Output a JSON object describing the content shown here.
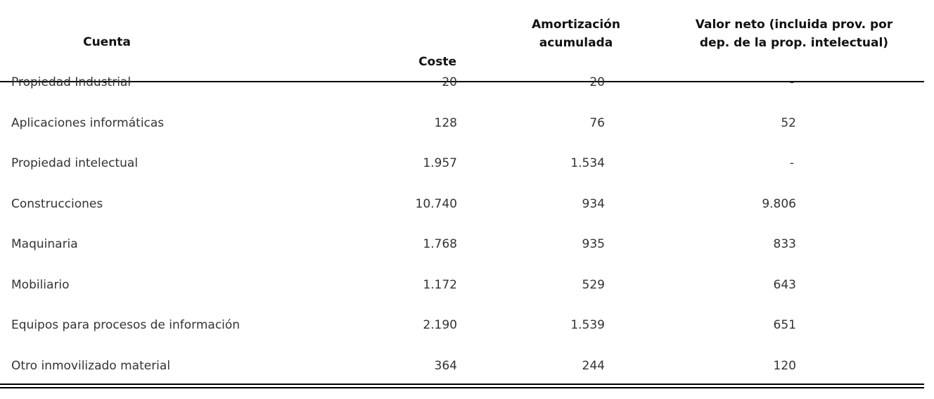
{
  "table": {
    "headers": {
      "cuenta": "Cuenta",
      "coste": "Coste",
      "amortizacion": [
        "Amortización",
        "acumulada"
      ],
      "valor_neto": [
        "Valor neto (incluida prov. por",
        "dep. de la prop. intelectual)"
      ]
    },
    "rows": [
      {
        "cuenta": "Propiedad Industrial",
        "coste": "20",
        "amortizacion": "20",
        "valor_neto": "-"
      },
      {
        "cuenta": "Aplicaciones informáticas",
        "coste": "128",
        "amortizacion": "76",
        "valor_neto": "52"
      },
      {
        "cuenta": "Propiedad intelectual",
        "coste": "1.957",
        "amortizacion": "1.534",
        "valor_neto": "-"
      },
      {
        "cuenta": "Construcciones",
        "coste": "10.740",
        "amortizacion": "934",
        "valor_neto": "9.806"
      },
      {
        "cuenta": "Maquinaria",
        "coste": "1.768",
        "amortizacion": "935",
        "valor_neto": "833"
      },
      {
        "cuenta": "Mobiliario",
        "coste": "1.172",
        "amortizacion": "529",
        "valor_neto": "643"
      },
      {
        "cuenta": "Equipos para procesos de información",
        "coste": "2.190",
        "amortizacion": "1.539",
        "valor_neto": "651"
      },
      {
        "cuenta": "Otro inmovilizado  material",
        "coste": "364",
        "amortizacion": "244",
        "valor_neto": "120"
      }
    ]
  }
}
